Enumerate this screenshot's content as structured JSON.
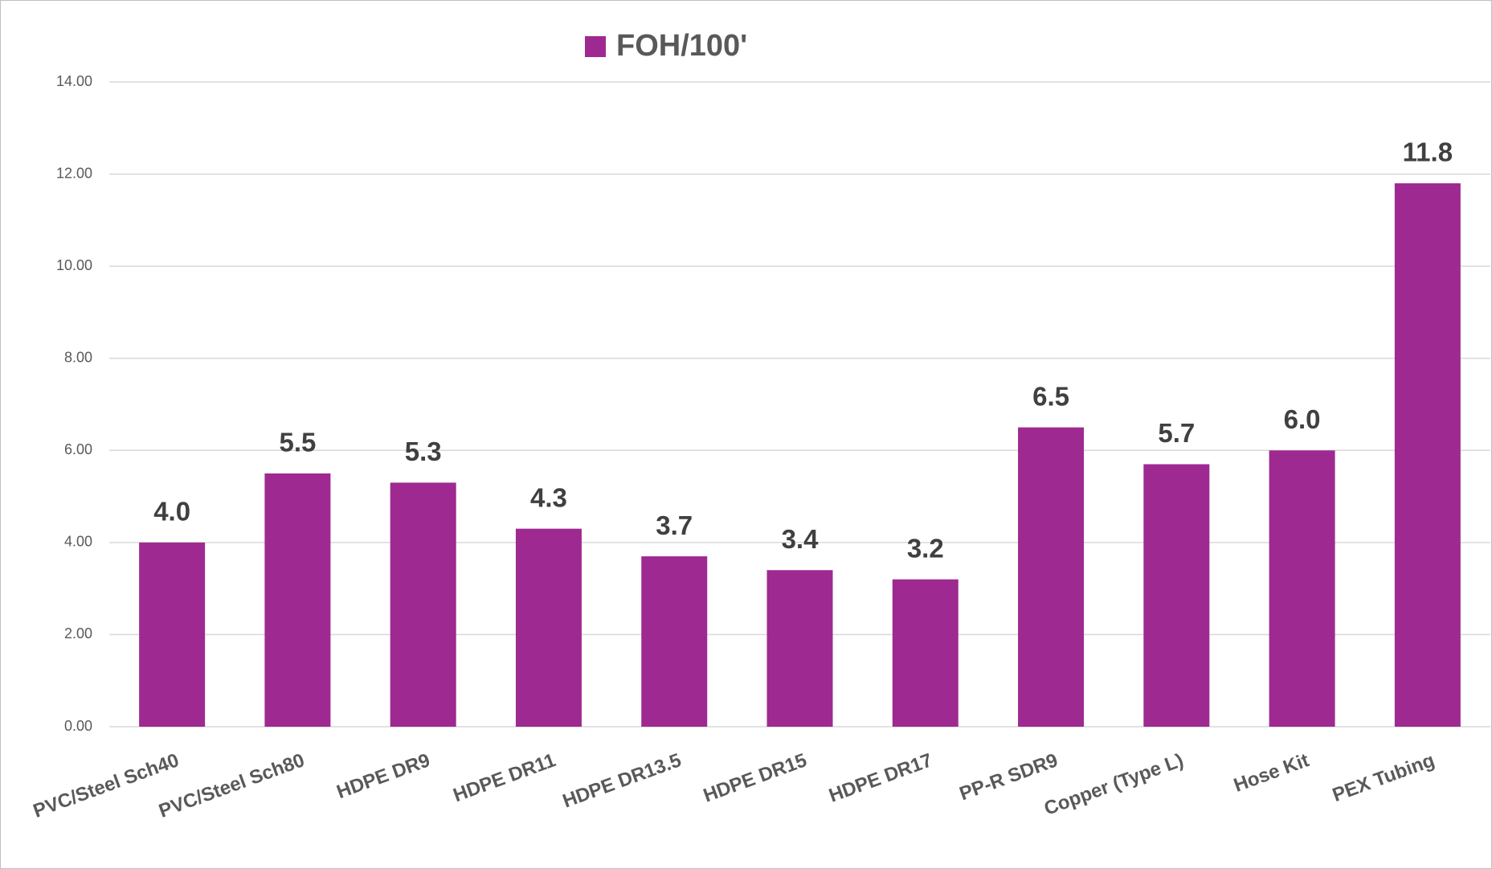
{
  "chart_data": {
    "type": "bar",
    "legend": "FOH/100'",
    "categories": [
      "PVC/Steel Sch40",
      "PVC/Steel Sch80",
      "HDPE DR9",
      "HDPE DR11",
      "HDPE DR13.5",
      "HDPE DR15",
      "HDPE DR17",
      "PP-R SDR9",
      "Copper (Type L)",
      "Hose Kit",
      "PEX Tubing"
    ],
    "values": [
      4.0,
      5.5,
      5.3,
      4.3,
      3.7,
      3.4,
      3.2,
      6.5,
      5.7,
      6.0,
      11.8
    ],
    "value_labels": [
      "4.0",
      "5.5",
      "5.3",
      "4.3",
      "3.7",
      "3.4",
      "3.2",
      "6.5",
      "5.7",
      "6.0",
      "11.8"
    ],
    "color": "#9e2a91",
    "ylim": [
      0,
      14
    ],
    "yticks": [
      {
        "value": 0,
        "label": "0.00"
      },
      {
        "value": 2,
        "label": "2.00"
      },
      {
        "value": 4,
        "label": "4.00"
      },
      {
        "value": 6,
        "label": "6.00"
      },
      {
        "value": 8,
        "label": "8.00"
      },
      {
        "value": 10,
        "label": "10.00"
      },
      {
        "value": 12,
        "label": "12.00"
      },
      {
        "value": 14,
        "label": "14.00"
      }
    ],
    "grid": true
  }
}
